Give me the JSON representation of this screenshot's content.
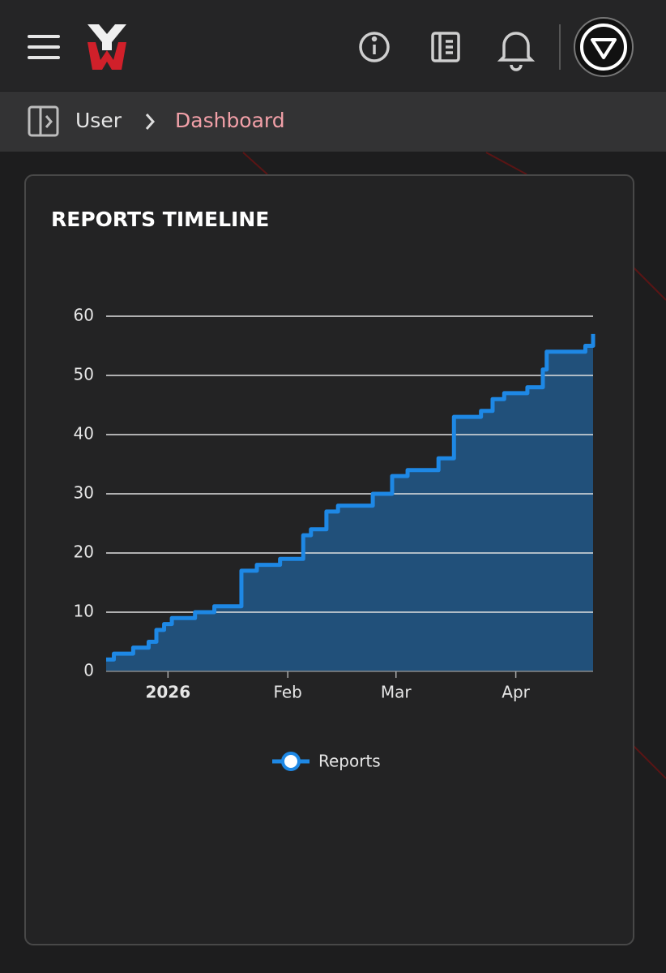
{
  "breadcrumb": {
    "parent": "User",
    "current": "Dashboard"
  },
  "chart_data": {
    "type": "step-area",
    "title": "REPORTS TIMELINE",
    "x": [
      -16,
      -14,
      -9,
      -5,
      -3,
      -1,
      1,
      7,
      12,
      19,
      23,
      29,
      35,
      37,
      41,
      44,
      53,
      58,
      62,
      70,
      74,
      81,
      84,
      87,
      93,
      97,
      98,
      108,
      110
    ],
    "series": [
      {
        "name": "Reports",
        "color": "#1e88e5",
        "values": [
          2,
          3,
          4,
          5,
          7,
          8,
          9,
          10,
          11,
          17,
          18,
          19,
          23,
          24,
          27,
          28,
          30,
          33,
          34,
          36,
          43,
          44,
          46,
          47,
          48,
          51,
          54,
          55,
          57
        ]
      }
    ],
    "xlim": [
      -16,
      110
    ],
    "xticks": [
      {
        "value": 0,
        "label": "2026"
      },
      {
        "value": 31,
        "label": "Feb"
      },
      {
        "value": 59,
        "label": "Mar"
      },
      {
        "value": 90,
        "label": "Apr"
      }
    ],
    "ylim": [
      0,
      60
    ],
    "yticks": [
      0,
      10,
      20,
      30,
      40,
      50,
      60
    ],
    "grid": true
  }
}
